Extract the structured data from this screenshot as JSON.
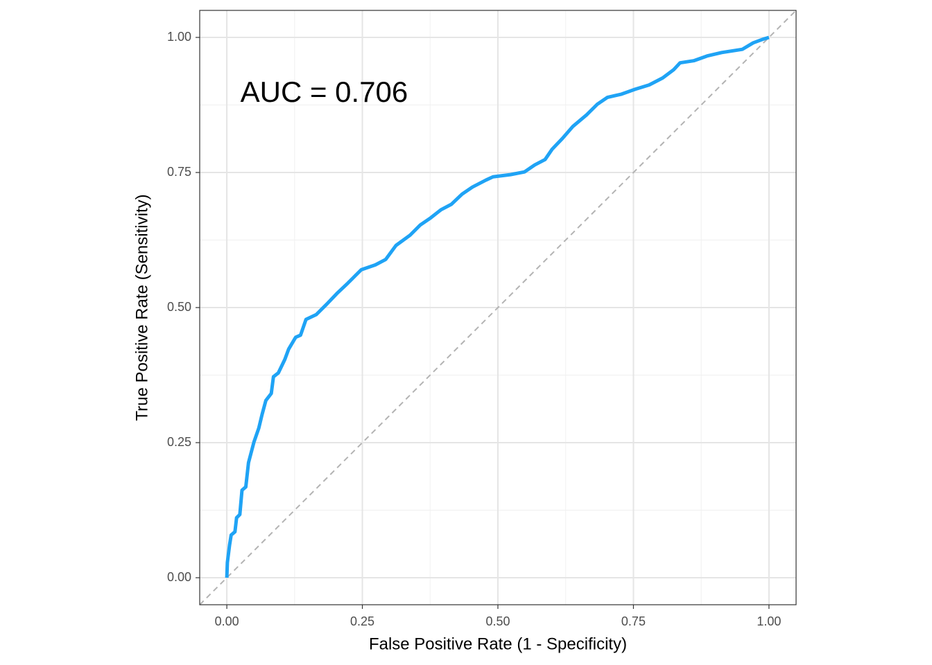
{
  "chart_data": {
    "type": "line",
    "x_label": "False Positive Rate (1 - Specificity)",
    "y_label": "True Positive Rate (Sensitivity)",
    "annotation": {
      "text": "AUC =  0.706",
      "x": 0.025,
      "y": 0.895
    },
    "xlim": [
      -0.05,
      1.05
    ],
    "ylim": [
      -0.05,
      1.05
    ],
    "xticks": [
      {
        "value": 0,
        "label": "0.00"
      },
      {
        "value": 0.25,
        "label": "0.25"
      },
      {
        "value": 0.5,
        "label": "0.50"
      },
      {
        "value": 0.75,
        "label": "0.75"
      },
      {
        "value": 1,
        "label": "1.00"
      }
    ],
    "yticks": [
      {
        "value": 0,
        "label": "0.00"
      },
      {
        "value": 0.25,
        "label": "0.25"
      },
      {
        "value": 0.5,
        "label": "0.50"
      },
      {
        "value": 0.75,
        "label": "0.75"
      },
      {
        "value": 1,
        "label": "1.00"
      }
    ],
    "xminor": [
      0.125,
      0.375,
      0.625,
      0.875
    ],
    "yminor": [
      0.125,
      0.375,
      0.625,
      0.875
    ],
    "grid": true,
    "reference_line": {
      "slope": 1,
      "intercept": 0,
      "color": "#b3b3b3"
    },
    "series": [
      {
        "color": "#1fa3f5",
        "x": [
          0,
          0.001,
          0.005,
          0.008,
          0.015,
          0.018,
          0.024,
          0.028,
          0.035,
          0.04,
          0.05,
          0.059,
          0.065,
          0.072,
          0.082,
          0.086,
          0.095,
          0.107,
          0.114,
          0.127,
          0.136,
          0.146,
          0.165,
          0.184,
          0.203,
          0.223,
          0.235,
          0.248,
          0.274,
          0.293,
          0.312,
          0.338,
          0.357,
          0.376,
          0.395,
          0.414,
          0.434,
          0.453,
          0.478,
          0.491,
          0.523,
          0.549,
          0.568,
          0.587,
          0.6,
          0.619,
          0.638,
          0.664,
          0.683,
          0.702,
          0.728,
          0.753,
          0.779,
          0.804,
          0.824,
          0.836,
          0.862,
          0.887,
          0.913,
          0.951,
          0.971,
          0.99,
          1
        ],
        "values": [
          0,
          0.028,
          0.06,
          0.079,
          0.085,
          0.111,
          0.117,
          0.162,
          0.168,
          0.213,
          0.251,
          0.277,
          0.302,
          0.328,
          0.341,
          0.372,
          0.379,
          0.404,
          0.423,
          0.445,
          0.449,
          0.478,
          0.487,
          0.506,
          0.526,
          0.545,
          0.557,
          0.57,
          0.579,
          0.589,
          0.615,
          0.634,
          0.653,
          0.666,
          0.681,
          0.691,
          0.71,
          0.723,
          0.736,
          0.742,
          0.746,
          0.751,
          0.764,
          0.774,
          0.793,
          0.813,
          0.835,
          0.857,
          0.876,
          0.889,
          0.895,
          0.904,
          0.912,
          0.925,
          0.94,
          0.953,
          0.957,
          0.966,
          0.972,
          0.978,
          0.99,
          0.997,
          1
        ]
      }
    ]
  }
}
